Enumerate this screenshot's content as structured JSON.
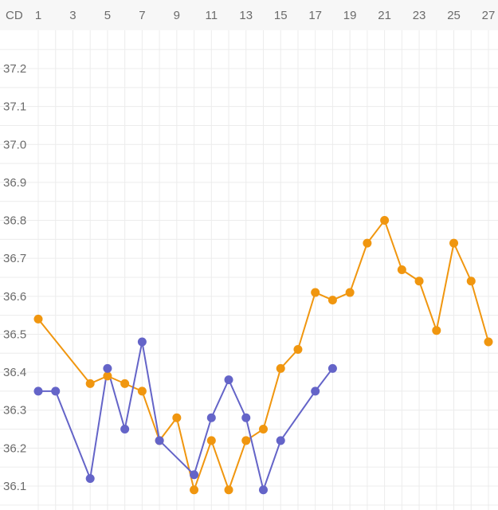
{
  "chart_data": {
    "type": "line",
    "x_axis_label": "CD",
    "x_tick_labels": [
      "1",
      "3",
      "5",
      "7",
      "9",
      "11",
      "13",
      "15",
      "17",
      "19",
      "21",
      "23",
      "25",
      "27"
    ],
    "y_tick_labels": [
      "37.2",
      "37.1",
      "37.0",
      "36.9",
      "36.8",
      "36.7",
      "36.6",
      "36.5",
      "36.4",
      "36.3",
      "36.2",
      "36.1"
    ],
    "x_range": [
      1,
      27
    ],
    "y_range": [
      36.08,
      37.25
    ],
    "grid": true,
    "series": [
      {
        "color": "#f0960f",
        "points": [
          [
            1,
            36.54
          ],
          [
            4,
            36.37
          ],
          [
            5,
            36.39
          ],
          [
            6,
            36.37
          ],
          [
            7,
            36.35
          ],
          [
            8,
            36.22
          ],
          [
            9,
            36.28
          ],
          [
            10,
            36.09
          ],
          [
            11,
            36.22
          ],
          [
            12,
            36.09
          ],
          [
            13,
            36.22
          ],
          [
            14,
            36.25
          ],
          [
            15,
            36.41
          ],
          [
            16,
            36.46
          ],
          [
            17,
            36.61
          ],
          [
            18,
            36.59
          ],
          [
            19,
            36.61
          ],
          [
            20,
            36.74
          ],
          [
            21,
            36.8
          ],
          [
            22,
            36.67
          ],
          [
            23,
            36.64
          ],
          [
            24,
            36.51
          ],
          [
            25,
            36.74
          ],
          [
            26,
            36.64
          ],
          [
            27,
            36.48
          ]
        ]
      },
      {
        "color": "#6464c8",
        "points": [
          [
            1,
            36.35
          ],
          [
            2,
            36.35
          ],
          [
            4,
            36.12
          ],
          [
            5,
            36.41
          ],
          [
            6,
            36.25
          ],
          [
            7,
            36.48
          ],
          [
            8,
            36.22
          ],
          [
            10,
            36.13
          ],
          [
            11,
            36.28
          ],
          [
            12,
            36.38
          ],
          [
            13,
            36.28
          ],
          [
            14,
            36.09
          ],
          [
            15,
            36.22
          ],
          [
            17,
            36.35
          ],
          [
            18,
            36.41
          ]
        ]
      }
    ]
  }
}
